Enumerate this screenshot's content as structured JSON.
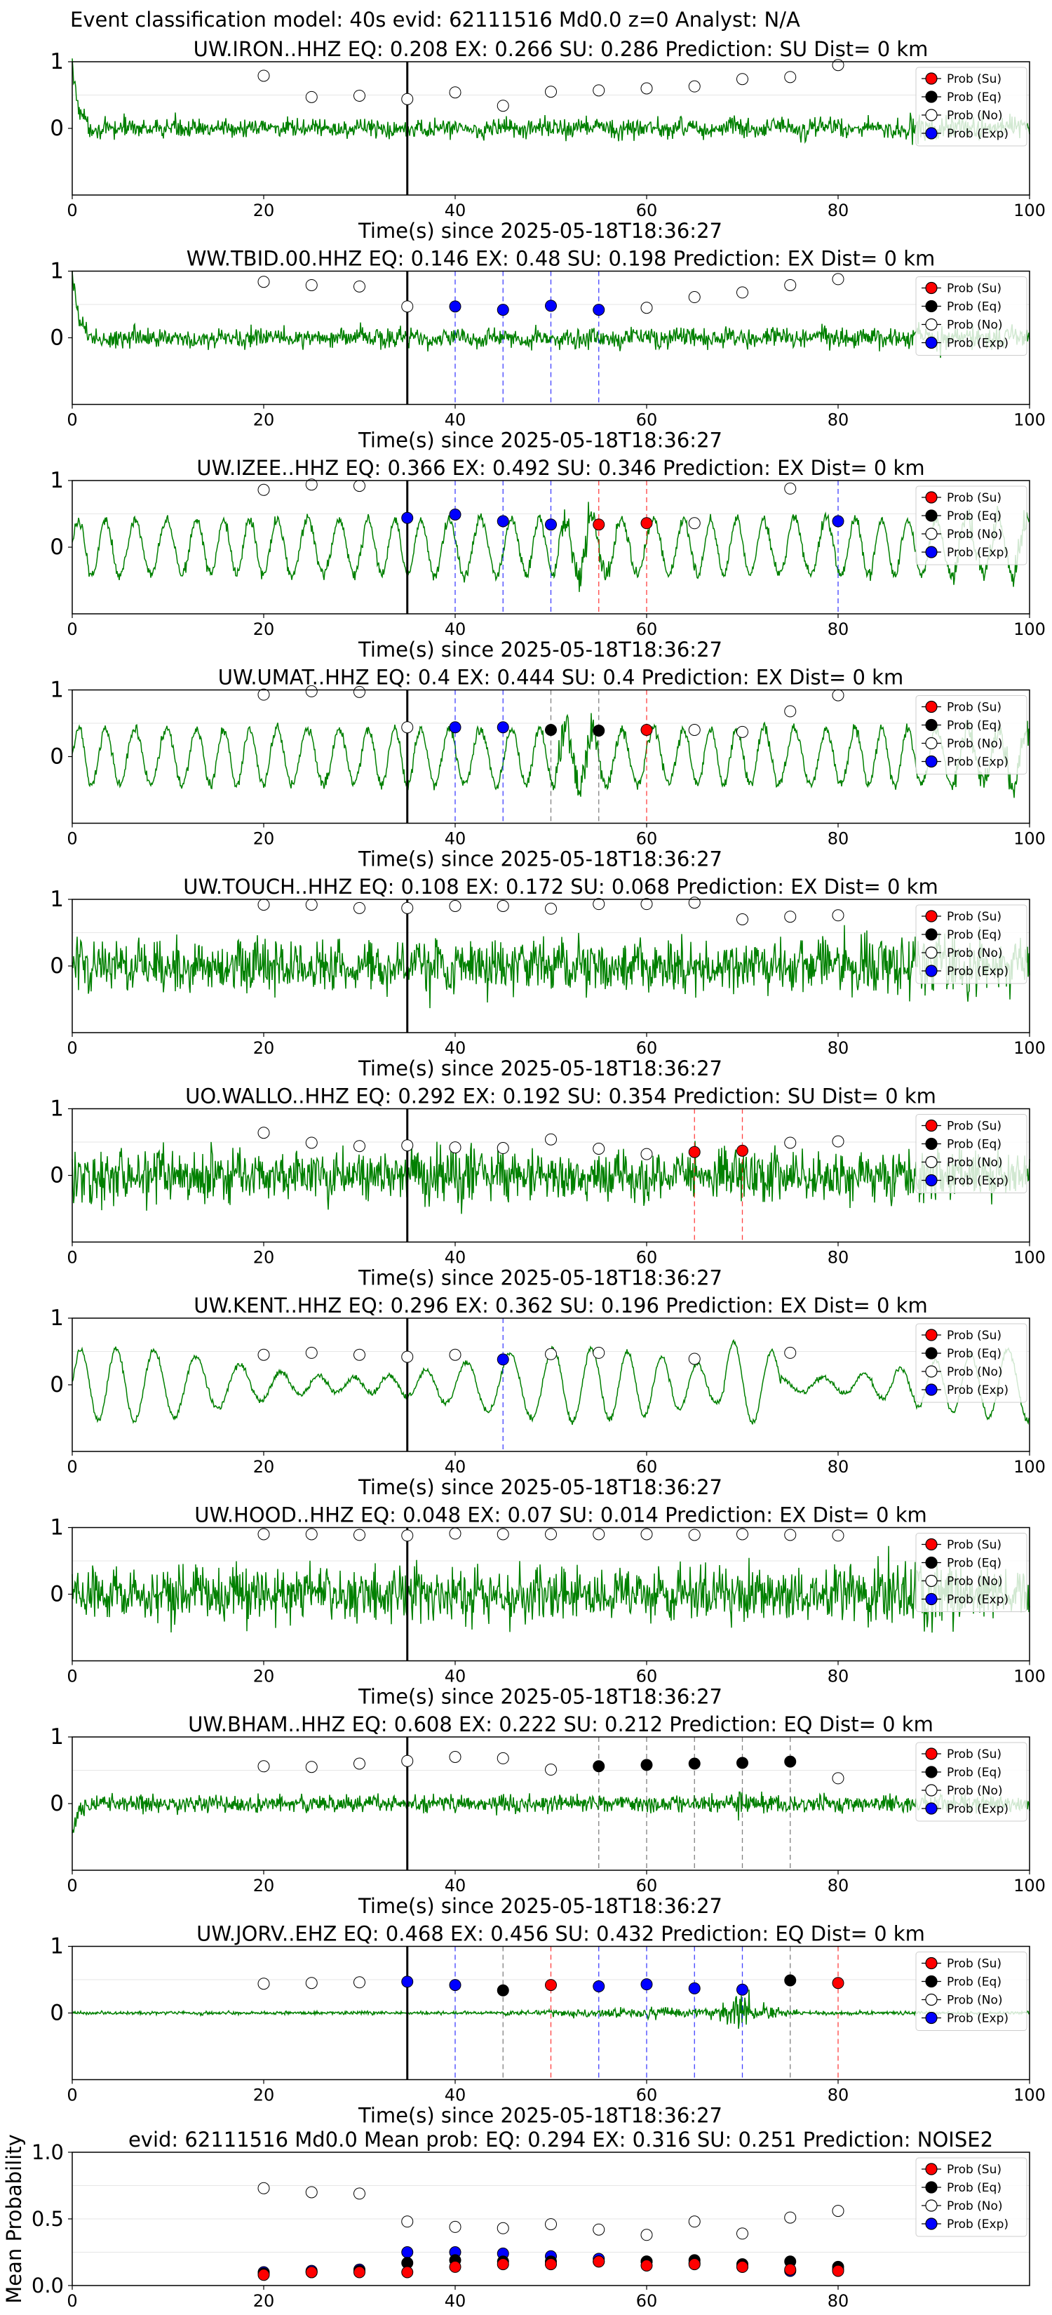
{
  "figure": {
    "title": "Event classification model: 40s evid: 62111516 Md0.0 z=0 Analyst: N/A"
  },
  "colors": {
    "waveform": "#008000",
    "su": "#ff0000",
    "eq": "#000000",
    "no": "#ffffff",
    "exp": "#0000ff",
    "arrival_line": "#000000"
  },
  "legend_labels": [
    "Prob (Su)",
    "Prob (Eq)",
    "Prob (No)",
    "Prob (Exp)"
  ],
  "chart_data": [
    {
      "type": "line",
      "title": "UW.IRON..HHZ   EQ: 0.208  EX: 0.266  SU: 0.286   Prediction: SU    Dist= 0 km",
      "xlabel": "Time(s) since 2025-05-18T18:36:27",
      "xlim": [
        0,
        100
      ],
      "ylim": [
        -1,
        1
      ],
      "xticks": [
        "0",
        "20",
        "40",
        "60",
        "80",
        "100"
      ],
      "yticks": [
        "1",
        "0"
      ],
      "arrival_time": 35,
      "waveform_style": "noise_onset",
      "points": [
        {
          "x": 20,
          "y": 0.79,
          "class": "no"
        },
        {
          "x": 25,
          "y": 0.47,
          "class": "no"
        },
        {
          "x": 30,
          "y": 0.49,
          "class": "no"
        },
        {
          "x": 35,
          "y": 0.44,
          "class": "no"
        },
        {
          "x": 40,
          "y": 0.54,
          "class": "no"
        },
        {
          "x": 45,
          "y": 0.34,
          "class": "no"
        },
        {
          "x": 50,
          "y": 0.55,
          "class": "no"
        },
        {
          "x": 55,
          "y": 0.57,
          "class": "no"
        },
        {
          "x": 60,
          "y": 0.6,
          "class": "no"
        },
        {
          "x": 65,
          "y": 0.63,
          "class": "no"
        },
        {
          "x": 70,
          "y": 0.74,
          "class": "no"
        },
        {
          "x": 75,
          "y": 0.77,
          "class": "no"
        },
        {
          "x": 80,
          "y": 0.95,
          "class": "no"
        }
      ]
    },
    {
      "type": "line",
      "title": "WW.TBID.00.HHZ   EQ: 0.146  EX: 0.48  SU: 0.198   Prediction: EX    Dist= 0 km",
      "xlabel": "Time(s) since 2025-05-18T18:36:27",
      "xlim": [
        0,
        100
      ],
      "ylim": [
        -1,
        1
      ],
      "xticks": [
        "0",
        "20",
        "40",
        "60",
        "80",
        "100"
      ],
      "yticks": [
        "1",
        "0"
      ],
      "arrival_time": 35,
      "waveform_style": "noise_onset",
      "points": [
        {
          "x": 20,
          "y": 0.84,
          "class": "no"
        },
        {
          "x": 25,
          "y": 0.79,
          "class": "no"
        },
        {
          "x": 30,
          "y": 0.77,
          "class": "no"
        },
        {
          "x": 35,
          "y": 0.47,
          "class": "no"
        },
        {
          "x": 40,
          "y": 0.47,
          "class": "exp"
        },
        {
          "x": 45,
          "y": 0.42,
          "class": "exp"
        },
        {
          "x": 50,
          "y": 0.48,
          "class": "exp"
        },
        {
          "x": 55,
          "y": 0.42,
          "class": "exp"
        },
        {
          "x": 60,
          "y": 0.45,
          "class": "no"
        },
        {
          "x": 65,
          "y": 0.61,
          "class": "no"
        },
        {
          "x": 70,
          "y": 0.68,
          "class": "no"
        },
        {
          "x": 75,
          "y": 0.79,
          "class": "no"
        },
        {
          "x": 80,
          "y": 0.88,
          "class": "no"
        }
      ]
    },
    {
      "type": "line",
      "title": "UW.IZEE..HHZ   EQ: 0.366  EX: 0.492  SU: 0.346   Prediction: EX    Dist= 0 km",
      "xlabel": "Time(s) since 2025-05-18T18:36:27",
      "xlim": [
        0,
        100
      ],
      "ylim": [
        -1,
        1
      ],
      "xticks": [
        "0",
        "20",
        "40",
        "60",
        "80",
        "100"
      ],
      "yticks": [
        "1",
        "0"
      ],
      "arrival_time": 35,
      "waveform_style": "oscillation_burst",
      "points": [
        {
          "x": 20,
          "y": 0.86,
          "class": "no"
        },
        {
          "x": 25,
          "y": 0.94,
          "class": "no"
        },
        {
          "x": 30,
          "y": 0.92,
          "class": "no"
        },
        {
          "x": 35,
          "y": 0.44,
          "class": "exp"
        },
        {
          "x": 40,
          "y": 0.49,
          "class": "exp"
        },
        {
          "x": 45,
          "y": 0.39,
          "class": "exp"
        },
        {
          "x": 50,
          "y": 0.34,
          "class": "exp"
        },
        {
          "x": 55,
          "y": 0.34,
          "class": "su"
        },
        {
          "x": 60,
          "y": 0.36,
          "class": "su"
        },
        {
          "x": 65,
          "y": 0.36,
          "class": "no"
        },
        {
          "x": 75,
          "y": 0.88,
          "class": "no"
        },
        {
          "x": 80,
          "y": 0.39,
          "class": "exp"
        }
      ]
    },
    {
      "type": "line",
      "title": "UW.UMAT..HHZ   EQ: 0.4  EX: 0.444  SU: 0.4   Prediction: EX    Dist= 0 km",
      "xlabel": "Time(s) since 2025-05-18T18:36:27",
      "xlim": [
        0,
        100
      ],
      "ylim": [
        -1,
        1
      ],
      "xticks": [
        "0",
        "20",
        "40",
        "60",
        "80",
        "100"
      ],
      "yticks": [
        "1",
        "0"
      ],
      "arrival_time": 35,
      "waveform_style": "oscillation_burst",
      "points": [
        {
          "x": 20,
          "y": 0.93,
          "class": "no"
        },
        {
          "x": 25,
          "y": 0.98,
          "class": "no"
        },
        {
          "x": 30,
          "y": 0.97,
          "class": "no"
        },
        {
          "x": 35,
          "y": 0.44,
          "class": "no"
        },
        {
          "x": 40,
          "y": 0.44,
          "class": "exp"
        },
        {
          "x": 45,
          "y": 0.44,
          "class": "exp"
        },
        {
          "x": 50,
          "y": 0.4,
          "class": "eq"
        },
        {
          "x": 55,
          "y": 0.39,
          "class": "eq"
        },
        {
          "x": 60,
          "y": 0.4,
          "class": "su"
        },
        {
          "x": 65,
          "y": 0.4,
          "class": "no"
        },
        {
          "x": 70,
          "y": 0.37,
          "class": "no"
        },
        {
          "x": 75,
          "y": 0.68,
          "class": "no"
        },
        {
          "x": 80,
          "y": 0.92,
          "class": "no"
        }
      ]
    },
    {
      "type": "line",
      "title": "UW.TOUCH..HHZ   EQ: 0.108  EX: 0.172  SU: 0.068   Prediction: EX    Dist= 0 km",
      "xlabel": "Time(s) since 2025-05-18T18:36:27",
      "xlim": [
        0,
        100
      ],
      "ylim": [
        -1,
        1
      ],
      "xticks": [
        "0",
        "20",
        "40",
        "60",
        "80",
        "100"
      ],
      "yticks": [
        "1",
        "0"
      ],
      "arrival_time": 35,
      "waveform_style": "dense_noise",
      "points": [
        {
          "x": 20,
          "y": 0.92,
          "class": "no"
        },
        {
          "x": 25,
          "y": 0.92,
          "class": "no"
        },
        {
          "x": 30,
          "y": 0.87,
          "class": "no"
        },
        {
          "x": 35,
          "y": 0.87,
          "class": "no"
        },
        {
          "x": 40,
          "y": 0.9,
          "class": "no"
        },
        {
          "x": 45,
          "y": 0.9,
          "class": "no"
        },
        {
          "x": 50,
          "y": 0.86,
          "class": "no"
        },
        {
          "x": 55,
          "y": 0.93,
          "class": "no"
        },
        {
          "x": 60,
          "y": 0.93,
          "class": "no"
        },
        {
          "x": 65,
          "y": 0.95,
          "class": "no"
        },
        {
          "x": 70,
          "y": 0.7,
          "class": "no"
        },
        {
          "x": 75,
          "y": 0.74,
          "class": "no"
        },
        {
          "x": 80,
          "y": 0.76,
          "class": "no"
        }
      ]
    },
    {
      "type": "line",
      "title": "UO.WALLO..HHZ   EQ: 0.292  EX: 0.192  SU: 0.354   Prediction: SU    Dist= 0 km",
      "xlabel": "Time(s) since 2025-05-18T18:36:27",
      "xlim": [
        0,
        100
      ],
      "ylim": [
        -1,
        1
      ],
      "xticks": [
        "0",
        "20",
        "40",
        "60",
        "80",
        "100"
      ],
      "yticks": [
        "1",
        "0"
      ],
      "arrival_time": 35,
      "waveform_style": "dense_noise",
      "points": [
        {
          "x": 20,
          "y": 0.64,
          "class": "no"
        },
        {
          "x": 25,
          "y": 0.49,
          "class": "no"
        },
        {
          "x": 30,
          "y": 0.44,
          "class": "no"
        },
        {
          "x": 35,
          "y": 0.45,
          "class": "no"
        },
        {
          "x": 40,
          "y": 0.42,
          "class": "no"
        },
        {
          "x": 45,
          "y": 0.41,
          "class": "no"
        },
        {
          "x": 50,
          "y": 0.54,
          "class": "no"
        },
        {
          "x": 55,
          "y": 0.4,
          "class": "no"
        },
        {
          "x": 60,
          "y": 0.32,
          "class": "no"
        },
        {
          "x": 65,
          "y": 0.35,
          "class": "su"
        },
        {
          "x": 70,
          "y": 0.37,
          "class": "su"
        },
        {
          "x": 75,
          "y": 0.49,
          "class": "no"
        },
        {
          "x": 80,
          "y": 0.51,
          "class": "no"
        }
      ]
    },
    {
      "type": "line",
      "title": "UW.KENT..HHZ   EQ: 0.296  EX: 0.362  SU: 0.196   Prediction: EX    Dist= 0 km",
      "xlabel": "Time(s) since 2025-05-18T18:36:27",
      "xlim": [
        0,
        100
      ],
      "ylim": [
        -1,
        1
      ],
      "xticks": [
        "0",
        "20",
        "40",
        "60",
        "80",
        "100"
      ],
      "yticks": [
        "1",
        "0"
      ],
      "arrival_time": 35,
      "waveform_style": "slow_oscillation",
      "points": [
        {
          "x": 20,
          "y": 0.45,
          "class": "no"
        },
        {
          "x": 25,
          "y": 0.48,
          "class": "no"
        },
        {
          "x": 30,
          "y": 0.45,
          "class": "no"
        },
        {
          "x": 35,
          "y": 0.42,
          "class": "no"
        },
        {
          "x": 40,
          "y": 0.45,
          "class": "no"
        },
        {
          "x": 45,
          "y": 0.38,
          "class": "exp"
        },
        {
          "x": 50,
          "y": 0.46,
          "class": "no"
        },
        {
          "x": 55,
          "y": 0.48,
          "class": "no"
        },
        {
          "x": 65,
          "y": 0.39,
          "class": "no"
        },
        {
          "x": 75,
          "y": 0.48,
          "class": "no"
        }
      ]
    },
    {
      "type": "line",
      "title": "UW.HOOD..HHZ   EQ: 0.048  EX: 0.07  SU: 0.014   Prediction: EX    Dist= 0 km",
      "xlabel": "Time(s) since 2025-05-18T18:36:27",
      "xlim": [
        0,
        100
      ],
      "ylim": [
        -1,
        1
      ],
      "xticks": [
        "0",
        "20",
        "40",
        "60",
        "80",
        "100"
      ],
      "yticks": [
        "1",
        "0"
      ],
      "arrival_time": 35,
      "waveform_style": "dense_noise",
      "points": [
        {
          "x": 20,
          "y": 0.9,
          "class": "no"
        },
        {
          "x": 25,
          "y": 0.9,
          "class": "no"
        },
        {
          "x": 30,
          "y": 0.89,
          "class": "no"
        },
        {
          "x": 35,
          "y": 0.88,
          "class": "no"
        },
        {
          "x": 40,
          "y": 0.91,
          "class": "no"
        },
        {
          "x": 45,
          "y": 0.9,
          "class": "no"
        },
        {
          "x": 50,
          "y": 0.9,
          "class": "no"
        },
        {
          "x": 55,
          "y": 0.9,
          "class": "no"
        },
        {
          "x": 60,
          "y": 0.9,
          "class": "no"
        },
        {
          "x": 65,
          "y": 0.89,
          "class": "no"
        },
        {
          "x": 70,
          "y": 0.9,
          "class": "no"
        },
        {
          "x": 75,
          "y": 0.89,
          "class": "no"
        },
        {
          "x": 80,
          "y": 0.88,
          "class": "no"
        }
      ]
    },
    {
      "type": "line",
      "title": "UW.BHAM..HHZ   EQ: 0.608  EX: 0.222  SU: 0.212   Prediction: EQ    Dist= 0 km",
      "xlabel": "Time(s) since 2025-05-18T18:36:27",
      "xlim": [
        0,
        100
      ],
      "ylim": [
        -1,
        1
      ],
      "xticks": [
        "0",
        "20",
        "40",
        "60",
        "80",
        "100"
      ],
      "yticks": [
        "1",
        "0"
      ],
      "arrival_time": 35,
      "waveform_style": "low_noise",
      "points": [
        {
          "x": 20,
          "y": 0.56,
          "class": "no"
        },
        {
          "x": 25,
          "y": 0.55,
          "class": "no"
        },
        {
          "x": 30,
          "y": 0.6,
          "class": "no"
        },
        {
          "x": 35,
          "y": 0.64,
          "class": "no"
        },
        {
          "x": 40,
          "y": 0.7,
          "class": "no"
        },
        {
          "x": 45,
          "y": 0.68,
          "class": "no"
        },
        {
          "x": 50,
          "y": 0.51,
          "class": "no"
        },
        {
          "x": 55,
          "y": 0.56,
          "class": "eq"
        },
        {
          "x": 60,
          "y": 0.58,
          "class": "eq"
        },
        {
          "x": 65,
          "y": 0.6,
          "class": "eq"
        },
        {
          "x": 70,
          "y": 0.61,
          "class": "eq"
        },
        {
          "x": 75,
          "y": 0.63,
          "class": "eq"
        },
        {
          "x": 80,
          "y": 0.38,
          "class": "no"
        }
      ]
    },
    {
      "type": "line",
      "title": "UW.JORV..EHZ   EQ: 0.468  EX: 0.456  SU: 0.432   Prediction: EQ    Dist= 0 km",
      "xlabel": "Time(s) since 2025-05-18T18:36:27",
      "xlim": [
        0,
        100
      ],
      "ylim": [
        -1,
        1
      ],
      "xticks": [
        "0",
        "20",
        "40",
        "60",
        "80",
        "100"
      ],
      "yticks": [
        "1",
        "0"
      ],
      "arrival_time": 35,
      "waveform_style": "quiet_burst",
      "points": [
        {
          "x": 20,
          "y": 0.44,
          "class": "no"
        },
        {
          "x": 25,
          "y": 0.45,
          "class": "no"
        },
        {
          "x": 30,
          "y": 0.46,
          "class": "no"
        },
        {
          "x": 35,
          "y": 0.47,
          "class": "exp"
        },
        {
          "x": 40,
          "y": 0.42,
          "class": "exp"
        },
        {
          "x": 45,
          "y": 0.34,
          "class": "eq"
        },
        {
          "x": 50,
          "y": 0.42,
          "class": "su"
        },
        {
          "x": 55,
          "y": 0.4,
          "class": "exp"
        },
        {
          "x": 60,
          "y": 0.43,
          "class": "exp"
        },
        {
          "x": 65,
          "y": 0.37,
          "class": "exp"
        },
        {
          "x": 70,
          "y": 0.35,
          "class": "exp"
        },
        {
          "x": 75,
          "y": 0.49,
          "class": "eq"
        },
        {
          "x": 80,
          "y": 0.45,
          "class": "su"
        }
      ]
    },
    {
      "type": "scatter",
      "title": "evid: 62111516  Md0.0   Mean prob:   EQ: 0.294  EX: 0.316  SU: 0.251   Prediction: NOISE2",
      "xlabel": "",
      "ylabel": "Mean Probability",
      "xlim": [
        0,
        100
      ],
      "ylim": [
        0,
        1
      ],
      "xticks": [
        "0",
        "20",
        "40",
        "60",
        "80"
      ],
      "yticks": [
        "1.0",
        "0.5",
        "0.0"
      ],
      "x": [
        20,
        25,
        30,
        35,
        40,
        45,
        50,
        55,
        60,
        65,
        70,
        75,
        80
      ],
      "series": [
        {
          "name": "Prob (No)",
          "class": "no",
          "values": [
            0.73,
            0.7,
            0.69,
            0.48,
            0.44,
            0.43,
            0.46,
            0.42,
            0.38,
            0.48,
            0.39,
            0.51,
            0.56
          ]
        },
        {
          "name": "Prob (Exp)",
          "class": "exp",
          "values": [
            0.1,
            0.11,
            0.12,
            0.25,
            0.25,
            0.24,
            0.22,
            0.2,
            0.18,
            0.17,
            0.14,
            0.11,
            0.12
          ]
        },
        {
          "name": "Prob (Eq)",
          "class": "eq",
          "values": [
            0.09,
            0.1,
            0.11,
            0.17,
            0.19,
            0.18,
            0.18,
            0.18,
            0.18,
            0.19,
            0.16,
            0.18,
            0.14
          ]
        },
        {
          "name": "Prob (Su)",
          "class": "su",
          "values": [
            0.08,
            0.1,
            0.1,
            0.1,
            0.14,
            0.16,
            0.16,
            0.18,
            0.15,
            0.16,
            0.14,
            0.12,
            0.11
          ]
        }
      ]
    }
  ]
}
